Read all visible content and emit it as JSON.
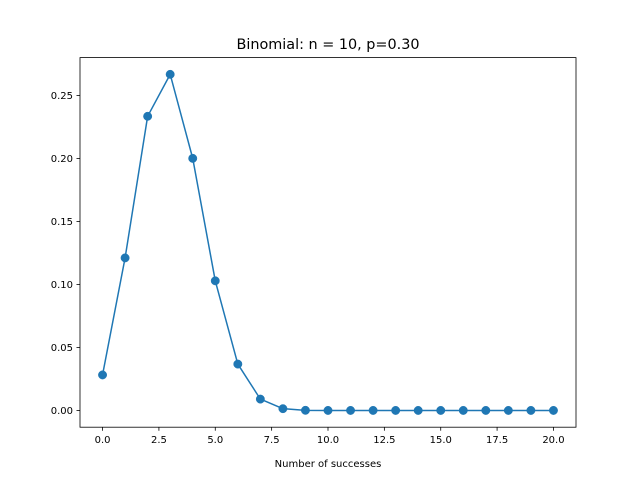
{
  "chart_data": {
    "type": "line",
    "title": "Binomial: n = 10, p=0.30",
    "xlabel": "Number of successes",
    "ylabel": "",
    "xlim": [
      -1.0,
      21.0
    ],
    "ylim": [
      -0.0133,
      0.2801
    ],
    "xticks": [
      0.0,
      2.5,
      5.0,
      7.5,
      10.0,
      12.5,
      15.0,
      17.5,
      20.0
    ],
    "xtick_labels": [
      "0.0",
      "2.5",
      "5.0",
      "7.5",
      "10.0",
      "12.5",
      "15.0",
      "17.5",
      "20.0"
    ],
    "yticks": [
      0.0,
      0.05,
      0.1,
      0.15,
      0.2,
      0.25
    ],
    "ytick_labels": [
      "0.00",
      "0.05",
      "0.10",
      "0.15",
      "0.20",
      "0.25"
    ],
    "grid": false,
    "legend": "none",
    "marker": "circle",
    "series": [
      {
        "color": "#1f77b4",
        "x": [
          0,
          1,
          2,
          3,
          4,
          5,
          6,
          7,
          8,
          9,
          10,
          11,
          12,
          13,
          14,
          15,
          16,
          17,
          18,
          19,
          20
        ],
        "y": [
          0.0282,
          0.1211,
          0.2335,
          0.2668,
          0.2001,
          0.1029,
          0.0368,
          0.009,
          0.0014,
          0.0001,
          0.0,
          0.0,
          0.0,
          0.0,
          0.0,
          0.0,
          0.0,
          0.0,
          0.0,
          0.0,
          0.0
        ]
      }
    ]
  }
}
